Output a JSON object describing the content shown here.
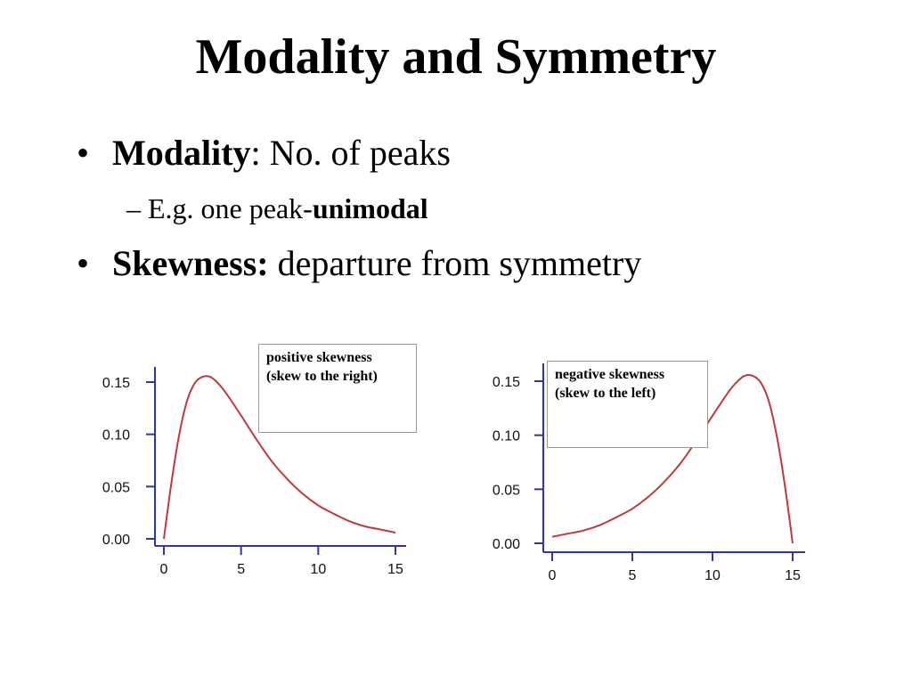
{
  "slide": {
    "title": "Modality and Symmetry",
    "bullets": [
      {
        "bold": "Modality",
        "text": ": No. of peaks"
      },
      {
        "bold": "Skewness:",
        "text": " departure from symmetry"
      }
    ],
    "sub_bullet": {
      "text": "– E.g. one peak-",
      "bold": "unimodal"
    }
  },
  "chart_data": [
    {
      "type": "line",
      "annotation": [
        "positive skewness",
        "(skew to the right)"
      ],
      "xlim": [
        0,
        15
      ],
      "ylim": [
        0,
        0.15
      ],
      "xticks": [
        0,
        5,
        10,
        15
      ],
      "xtick_labels": [
        "0",
        "5",
        "10",
        "15"
      ],
      "yticks": [
        0,
        0.05,
        0.1,
        0.15
      ],
      "ytick_labels": [
        "0.00",
        "0.05",
        "0.10",
        "0.15"
      ],
      "axis_color": "#3333aa",
      "series": [
        {
          "color": "#c0393b",
          "x": [
            0,
            0.5,
            1,
            1.5,
            2,
            2.5,
            3,
            3.5,
            4,
            5,
            6,
            7,
            8,
            9,
            10,
            11,
            12,
            13,
            14,
            15
          ],
          "y": [
            0.0,
            0.055,
            0.1,
            0.132,
            0.149,
            0.155,
            0.155,
            0.149,
            0.14,
            0.118,
            0.095,
            0.074,
            0.057,
            0.043,
            0.032,
            0.024,
            0.017,
            0.012,
            0.009,
            0.006
          ]
        }
      ]
    },
    {
      "type": "line",
      "annotation": [
        "negative skewness",
        "(skew to the left)"
      ],
      "xlim": [
        0,
        15
      ],
      "ylim": [
        0,
        0.15
      ],
      "xticks": [
        0,
        5,
        10,
        15
      ],
      "xtick_labels": [
        "0",
        "5",
        "10",
        "15"
      ],
      "yticks": [
        0,
        0.05,
        0.1,
        0.15
      ],
      "ytick_labels": [
        "0.00",
        "0.05",
        "0.10",
        "0.15"
      ],
      "axis_color": "#3333aa",
      "series": [
        {
          "color": "#c0393b",
          "x": [
            0,
            1,
            2,
            3,
            4,
            5,
            6,
            7,
            8,
            9,
            10,
            11,
            11.5,
            12,
            12.5,
            13,
            13.5,
            14,
            14.5,
            15
          ],
          "y": [
            0.006,
            0.009,
            0.012,
            0.017,
            0.024,
            0.032,
            0.043,
            0.057,
            0.074,
            0.095,
            0.118,
            0.14,
            0.149,
            0.155,
            0.155,
            0.149,
            0.132,
            0.1,
            0.055,
            0.0
          ]
        }
      ]
    }
  ]
}
